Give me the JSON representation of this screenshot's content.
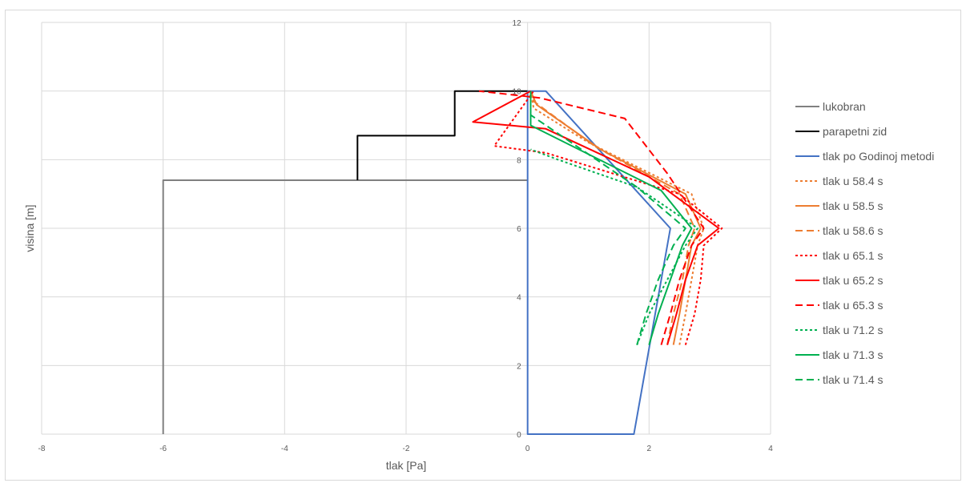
{
  "chart_data": {
    "type": "line",
    "title": "",
    "xlabel": "tlak [Pa]",
    "ylabel": "visina [m]",
    "xlim": [
      -8,
      4
    ],
    "ylim": [
      0,
      12
    ],
    "x_ticks": [
      "-8",
      "-6",
      "-4",
      "-2",
      "0",
      "2",
      "4"
    ],
    "y_ticks": [
      "0",
      "2",
      "4",
      "6",
      "8",
      "10",
      "12"
    ],
    "grid": true,
    "legend_position": "right",
    "series": [
      {
        "name": "lukobran",
        "color": "#808080",
        "dash": "solid",
        "x": [
          -6,
          -6,
          0
        ],
        "y": [
          0,
          7.4,
          7.4
        ]
      },
      {
        "name": "parapetni zid",
        "color": "#000000",
        "dash": "solid",
        "x": [
          -2.8,
          -2.8,
          -1.2,
          -1.2,
          0
        ],
        "y": [
          7.4,
          8.7,
          8.7,
          10,
          10
        ]
      },
      {
        "name": "tlak po Godinoj metodi",
        "color": "#4472c4",
        "dash": "solid",
        "x": [
          0,
          0,
          1.75,
          2.35,
          0.3,
          0
        ],
        "y": [
          10,
          0,
          0,
          6,
          10,
          10
        ]
      },
      {
        "name": "tlak u 58.4 s",
        "color": "#ed7d31",
        "dash": "dot",
        "x": [
          2.5,
          2.6,
          2.7,
          2.8,
          2.9,
          2.7,
          1.0,
          0.1,
          0.05
        ],
        "y": [
          2.6,
          3.5,
          4.5,
          5.5,
          6.0,
          7.0,
          8.5,
          9.5,
          10
        ]
      },
      {
        "name": "tlak u 58.5 s",
        "color": "#ed7d31",
        "dash": "solid",
        "x": [
          2.4,
          2.5,
          2.6,
          2.7,
          2.85,
          2.6,
          1.2,
          0.15,
          0.05
        ],
        "y": [
          2.6,
          3.5,
          4.5,
          5.5,
          6.0,
          7.0,
          8.3,
          9.6,
          10
        ]
      },
      {
        "name": "tlak u 58.6 s",
        "color": "#ed7d31",
        "dash": "dash",
        "x": [
          2.3,
          2.4,
          2.55,
          2.65,
          2.75,
          2.5,
          1.1,
          0.1,
          0.05
        ],
        "y": [
          2.6,
          3.5,
          4.5,
          5.5,
          6.0,
          7.0,
          8.4,
          9.7,
          10
        ]
      },
      {
        "name": "tlak u 65.1 s",
        "color": "#ff0000",
        "dash": "dot",
        "x": [
          2.6,
          2.75,
          2.85,
          2.9,
          3.2,
          2.5,
          0.3,
          -0.55,
          0.1
        ],
        "y": [
          2.6,
          3.5,
          4.5,
          5.5,
          6.0,
          7.0,
          8.2,
          8.4,
          10
        ]
      },
      {
        "name": "tlak u 65.2 s",
        "color": "#ff0000",
        "dash": "solid",
        "x": [
          2.3,
          2.45,
          2.6,
          2.8,
          3.15,
          2.0,
          0.3,
          -0.9,
          0.05
        ],
        "y": [
          2.6,
          3.5,
          4.5,
          5.5,
          6.0,
          7.5,
          8.9,
          9.1,
          10
        ]
      },
      {
        "name": "tlak u 65.3 s",
        "color": "#ff0000",
        "dash": "dash",
        "x": [
          2.2,
          2.35,
          2.5,
          2.7,
          2.9,
          2.3,
          1.6,
          0.2,
          -0.8
        ],
        "y": [
          2.6,
          3.5,
          4.5,
          5.5,
          6.0,
          7.6,
          9.2,
          9.8,
          10
        ]
      },
      {
        "name": "tlak u 71.2 s",
        "color": "#00b050",
        "dash": "dot",
        "x": [
          1.8,
          2.0,
          2.3,
          2.6,
          2.8,
          1.8,
          0.5,
          0.05
        ],
        "y": [
          2.6,
          3.5,
          4.5,
          5.5,
          6.0,
          7.2,
          8.0,
          8.3
        ]
      },
      {
        "name": "tlak u 71.3 s",
        "color": "#00b050",
        "dash": "solid",
        "x": [
          2.0,
          2.15,
          2.35,
          2.55,
          2.7,
          2.2,
          0.05,
          0.05
        ],
        "y": [
          2.6,
          3.5,
          4.5,
          5.5,
          6.0,
          7.1,
          9.0,
          10
        ]
      },
      {
        "name": "tlak u 71.4 s",
        "color": "#00b050",
        "dash": "dash",
        "x": [
          1.8,
          1.95,
          2.15,
          2.4,
          2.6,
          1.8,
          0.05,
          0.05
        ],
        "y": [
          2.6,
          3.5,
          4.5,
          5.5,
          6.0,
          7.2,
          9.3,
          10
        ]
      }
    ]
  }
}
